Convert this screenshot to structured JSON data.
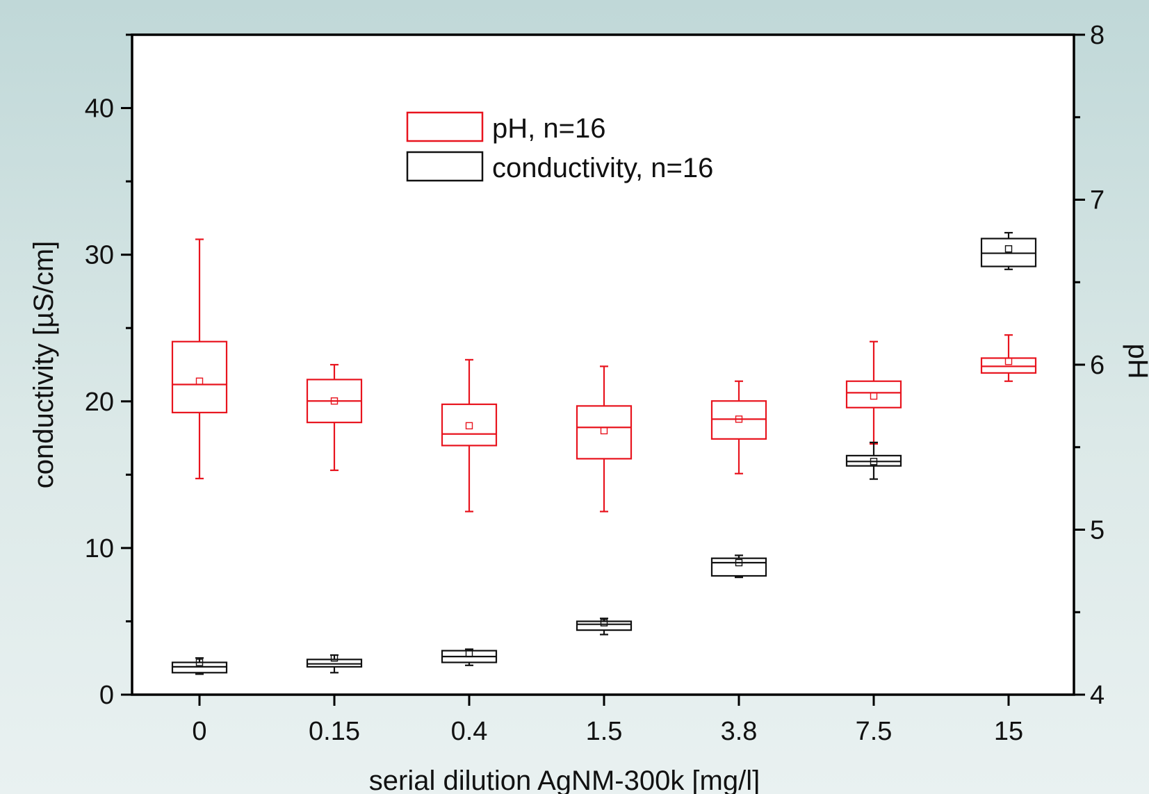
{
  "chart_data": {
    "type": "box",
    "categories": [
      "0",
      "0.15",
      "0.4",
      "1.5",
      "3.8",
      "7.5",
      "15"
    ],
    "xlabel": "serial dilution AgNM-300k [mg/l]",
    "ylabel": "conductivity [µS/cm]",
    "y2label": "pH",
    "ylim": [
      0,
      45
    ],
    "y2lim": [
      4,
      8
    ],
    "yticks": [
      0,
      10,
      20,
      30,
      40
    ],
    "y2ticks": [
      4,
      5,
      6,
      7,
      8
    ],
    "grid": false,
    "legend_position": "top-center",
    "series": [
      {
        "name": "pH, n=16",
        "axis": "right",
        "color": "#e8141e",
        "boxes": [
          {
            "min": 5.31,
            "q1": 5.71,
            "median": 5.88,
            "q3": 6.14,
            "max": 6.76,
            "mean": 5.9
          },
          {
            "min": 5.36,
            "q1": 5.65,
            "median": 5.78,
            "q3": 5.91,
            "max": 6.0,
            "mean": 5.78
          },
          {
            "min": 5.11,
            "q1": 5.51,
            "median": 5.58,
            "q3": 5.76,
            "max": 6.03,
            "mean": 5.63
          },
          {
            "min": 5.11,
            "q1": 5.43,
            "median": 5.62,
            "q3": 5.75,
            "max": 5.99,
            "mean": 5.6
          },
          {
            "min": 5.34,
            "q1": 5.55,
            "median": 5.67,
            "q3": 5.78,
            "max": 5.9,
            "mean": 5.67
          },
          {
            "min": 5.52,
            "q1": 5.74,
            "median": 5.83,
            "q3": 5.9,
            "max": 6.14,
            "mean": 5.81
          },
          {
            "min": 5.9,
            "q1": 5.95,
            "median": 5.99,
            "q3": 6.04,
            "max": 6.18,
            "mean": 6.02
          }
        ]
      },
      {
        "name": "conductivity, n=16",
        "axis": "left",
        "color": "#111111",
        "boxes": [
          {
            "min": 1.4,
            "q1": 1.5,
            "median": 1.9,
            "q3": 2.2,
            "max": 2.5,
            "mean": 2.2
          },
          {
            "min": 1.5,
            "q1": 1.9,
            "median": 2.1,
            "q3": 2.4,
            "max": 2.7,
            "mean": 2.5
          },
          {
            "min": 2.0,
            "q1": 2.2,
            "median": 2.6,
            "q3": 3.0,
            "max": 3.1,
            "mean": 2.8
          },
          {
            "min": 4.1,
            "q1": 4.4,
            "median": 4.8,
            "q3": 5.0,
            "max": 5.2,
            "mean": 4.9
          },
          {
            "min": 8.0,
            "q1": 8.1,
            "median": 9.0,
            "q3": 9.3,
            "max": 9.5,
            "mean": 9.0
          },
          {
            "min": 14.7,
            "q1": 15.6,
            "median": 15.9,
            "q3": 16.3,
            "max": 17.2,
            "mean": 15.9
          },
          {
            "min": 29.0,
            "q1": 29.2,
            "median": 30.1,
            "q3": 31.1,
            "max": 31.5,
            "mean": 30.4
          }
        ]
      }
    ]
  }
}
